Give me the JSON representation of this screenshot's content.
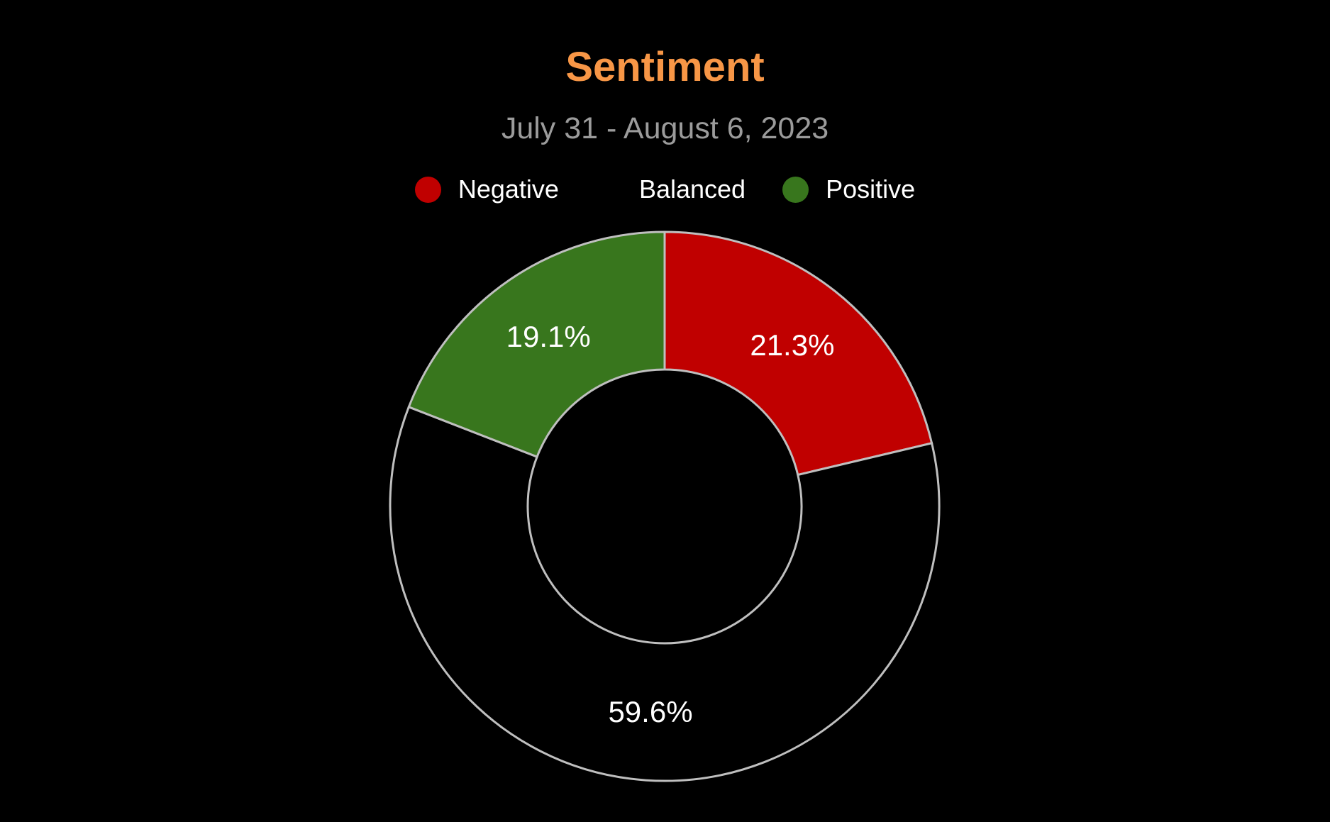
{
  "chart_data": {
    "type": "pie",
    "variant": "donut",
    "title": "Sentiment",
    "subtitle": "July 31 - August 6, 2023",
    "legend_position": "top",
    "slices": [
      {
        "label": "Negative",
        "value": 21.3,
        "value_label": "21.3%",
        "color": "#c00000"
      },
      {
        "label": "Balanced",
        "value": 59.6,
        "value_label": "59.6%",
        "color": "#000000"
      },
      {
        "label": "Positive",
        "value": 19.1,
        "value_label": "19.1%",
        "color": "#38761d"
      }
    ],
    "start_angle": "12 o'clock",
    "direction": "clockwise",
    "slice_border_color": "#bfbfbf"
  },
  "colors": {
    "background": "#000000",
    "title": "#f79646",
    "subtitle": "#9b9b9b",
    "text": "#ffffff"
  }
}
